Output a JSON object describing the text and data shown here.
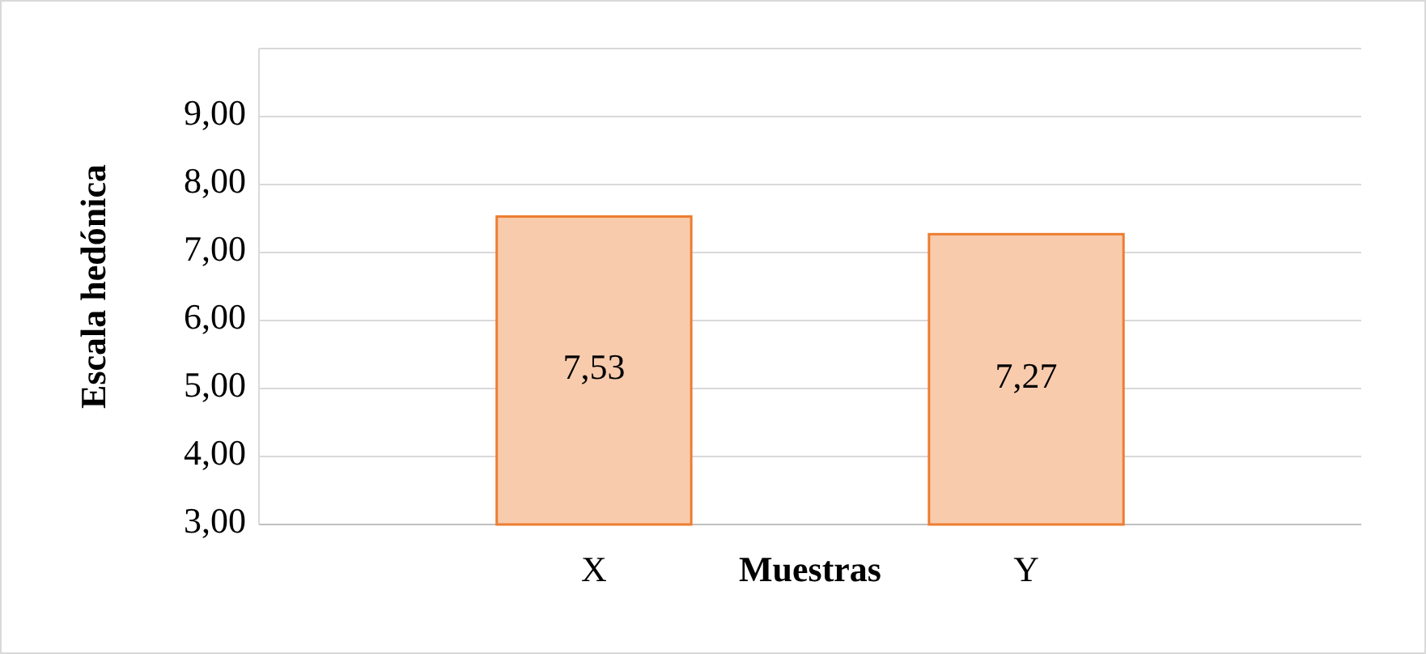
{
  "chart_data": {
    "type": "bar",
    "xlabel": "Muestras",
    "ylabel": "Escala hedónica",
    "categories": [
      "X",
      "Y"
    ],
    "values": [
      7.53,
      7.27
    ],
    "value_labels": [
      "7,53",
      "7,27"
    ],
    "color": "#f8cbad",
    "ylim": [
      3,
      10
    ],
    "yticks": [
      {
        "value": 3,
        "label": "3,00"
      },
      {
        "value": 4,
        "label": "4,00"
      },
      {
        "value": 5,
        "label": "5,00"
      },
      {
        "value": 6,
        "label": "6,00"
      },
      {
        "value": 7,
        "label": "7,00"
      },
      {
        "value": 8,
        "label": "8,00"
      },
      {
        "value": 9,
        "label": "9,00"
      },
      {
        "value": 10,
        "label": null
      }
    ],
    "grid": true
  }
}
